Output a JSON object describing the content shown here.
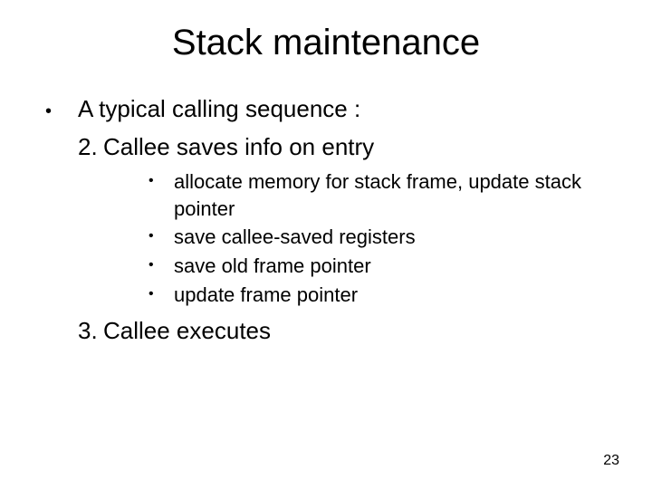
{
  "title": "Stack maintenance",
  "intro": "A typical calling sequence :",
  "item2_num": "2.",
  "item2_text": "Callee saves info on entry",
  "sub": {
    "a": "allocate memory for stack frame, update stack pointer",
    "b": "save callee-saved registers",
    "c": "save old frame pointer",
    "d": "update frame pointer"
  },
  "item3_num": "3.",
  "item3_text": "Callee executes",
  "page_number": "23",
  "bullet_char": "•"
}
